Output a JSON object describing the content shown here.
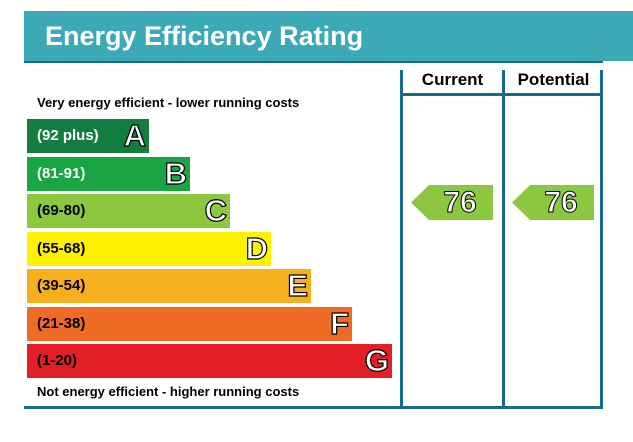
{
  "title": "Energy Efficiency Rating",
  "caption_top": "Very energy efficient - lower running costs",
  "caption_bottom": "Not energy efficient - higher running costs",
  "chart_data": {
    "type": "bar",
    "categories": [
      "A",
      "B",
      "C",
      "D",
      "E",
      "F",
      "G"
    ],
    "columns": {
      "current": "Current",
      "potential": "Potential"
    },
    "bands": [
      {
        "letter": "A",
        "range": "(92 plus)",
        "color": "#127d3f"
      },
      {
        "letter": "B",
        "range": "(81-91)",
        "color": "#1aa444"
      },
      {
        "letter": "C",
        "range": "(69-80)",
        "color": "#8dc63f"
      },
      {
        "letter": "D",
        "range": "(55-68)",
        "color": "#fff200"
      },
      {
        "letter": "E",
        "range": "(39-54)",
        "color": "#f7af1d"
      },
      {
        "letter": "F",
        "range": "(21-38)",
        "color": "#ef6a25"
      },
      {
        "letter": "G",
        "range": "(1-20)",
        "color": "#e41e26"
      }
    ],
    "current": {
      "value": "76",
      "band": "C",
      "color": "#8dc63f"
    },
    "potential": {
      "value": "76",
      "band": "C",
      "color": "#8dc63f"
    },
    "frame_color": "#1a6a8c",
    "title_bar_color": "#3ba9b6"
  }
}
